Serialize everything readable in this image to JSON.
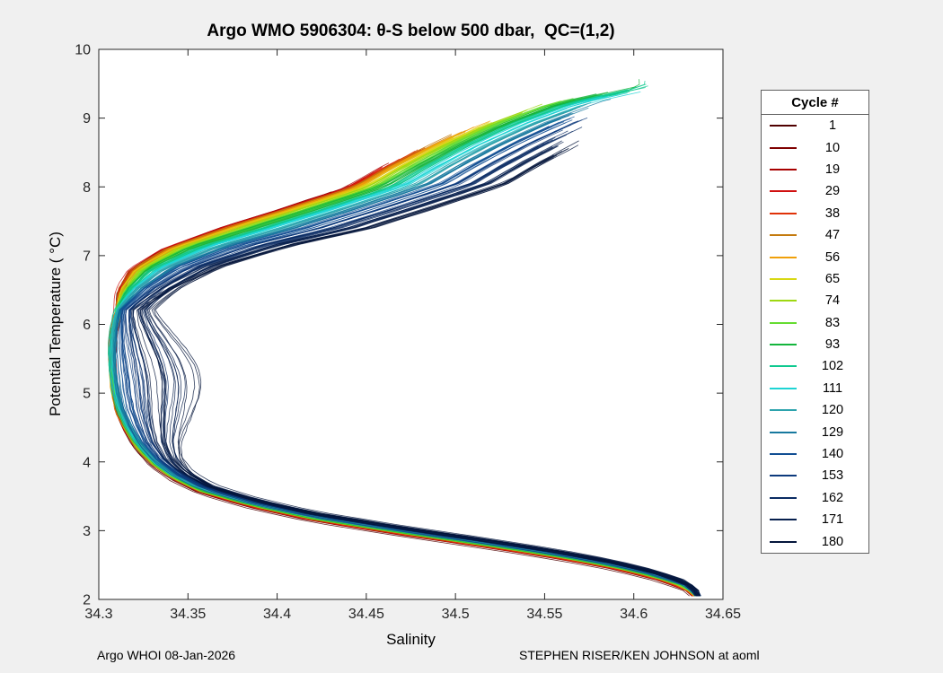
{
  "figure": {
    "background": "#f0f0f0"
  },
  "chart_data": {
    "type": "line",
    "title": "Argo WMO 5906304: θ-S below 500 dbar,  QC=(1,2)",
    "xlabel": "Salinity",
    "ylabel": "Potential Temperature ( °C)",
    "xlim": [
      34.3,
      34.65
    ],
    "ylim": [
      2,
      10
    ],
    "x_ticks": [
      34.3,
      34.35,
      34.4,
      34.45,
      34.5,
      34.55,
      34.6,
      34.65
    ],
    "x_tick_labels": [
      "34.3",
      "34.35",
      "34.4",
      "34.45",
      "34.5",
      "34.55",
      "34.6",
      "34.65"
    ],
    "y_ticks": [
      2,
      3,
      4,
      5,
      6,
      7,
      8,
      9,
      10
    ],
    "y_tick_labels": [
      "2",
      "3",
      "4",
      "5",
      "6",
      "7",
      "8",
      "9",
      "10"
    ],
    "grid": false,
    "legend_title": "Cycle #",
    "legend_position": "right-outside",
    "axis_color": "#262626",
    "plot_background": "#ffffff",
    "base_curve": {
      "comment": "Mean theta-S profile: S (salinity) as function of T (potential temperature, degC)",
      "T": [
        2.05,
        2.2,
        2.35,
        2.5,
        2.65,
        2.8,
        3.0,
        3.2,
        3.4,
        3.6,
        3.8,
        4.0,
        4.25,
        4.5,
        4.75,
        5.0,
        5.3,
        5.6,
        5.9,
        6.2,
        6.5,
        6.8,
        7.1,
        7.4,
        7.7,
        8.0,
        8.3,
        8.6,
        8.9,
        9.2,
        9.45
      ],
      "S": [
        34.636,
        34.629,
        34.612,
        34.588,
        34.557,
        34.52,
        34.468,
        34.42,
        34.385,
        34.358,
        34.342,
        34.331,
        34.322,
        34.316,
        34.3115,
        34.309,
        34.3075,
        34.307,
        34.308,
        34.3105,
        34.316,
        34.327,
        34.35,
        34.386,
        34.423,
        34.458,
        34.478,
        34.5,
        34.525,
        34.556,
        34.6
      ]
    },
    "series": [
      {
        "cycle": 1,
        "color": "#500000",
        "t_max": 7.9,
        "s_shift_top": -0.02,
        "s_shift_mid": 0,
        "t_shift": 0.05
      },
      {
        "cycle": 10,
        "color": "#7f0000",
        "t_max": 8.05,
        "s_shift_top": -0.0199,
        "s_shift_mid": 0,
        "t_shift": 0.0447
      },
      {
        "cycle": 19,
        "color": "#a80000",
        "t_max": 8.2,
        "s_shift_top": -0.0194,
        "s_shift_mid": 0,
        "t_shift": 0.0395
      },
      {
        "cycle": 29,
        "color": "#d01010",
        "t_max": 8.35,
        "s_shift_top": -0.0184,
        "s_shift_mid": 0,
        "t_shift": 0.0342
      },
      {
        "cycle": 38,
        "color": "#e03208",
        "t_max": 8.49,
        "s_shift_top": -0.0171,
        "s_shift_mid": 0,
        "t_shift": 0.0289
      },
      {
        "cycle": 47,
        "color": "#c47a0e",
        "t_max": 8.64,
        "s_shift_top": -0.0152,
        "s_shift_mid": 0,
        "t_shift": 0.0237
      },
      {
        "cycle": 56,
        "color": "#f0a00a",
        "t_max": 8.79,
        "s_shift_top": -0.0129,
        "s_shift_mid": 0,
        "t_shift": 0.0184
      },
      {
        "cycle": 65,
        "color": "#d8d812",
        "t_max": 8.94,
        "s_shift_top": -0.01,
        "s_shift_mid": 0,
        "t_shift": 0.0132
      },
      {
        "cycle": 74,
        "color": "#9ed812",
        "t_max": 9.09,
        "s_shift_top": -0.0066,
        "s_shift_mid": 0,
        "t_shift": 0.0079
      },
      {
        "cycle": 83,
        "color": "#64dc30",
        "t_max": 9.24,
        "s_shift_top": -0.0026,
        "s_shift_mid": 0,
        "t_shift": 0.0026
      },
      {
        "cycle": 93,
        "color": "#14b53c",
        "t_max": 9.38,
        "s_shift_top": 0.0019,
        "s_shift_mid": 0,
        "t_shift": -0.0026
      },
      {
        "cycle": 102,
        "color": "#0ec98f",
        "t_max": 9.39,
        "s_shift_top": 0.007,
        "s_shift_mid": 0,
        "t_shift": -0.0079
      },
      {
        "cycle": 111,
        "color": "#1ed4d4",
        "t_max": 9.28,
        "s_shift_top": 0.0128,
        "s_shift_mid": 0.0005,
        "t_shift": -0.0132
      },
      {
        "cycle": 120,
        "color": "#2da3ad",
        "t_max": 9.17,
        "s_shift_top": 0.0191,
        "s_shift_mid": 0.001,
        "t_shift": -0.0184
      },
      {
        "cycle": 129,
        "color": "#17799f",
        "t_max": 9.06,
        "s_shift_top": 0.026,
        "s_shift_mid": 0.002,
        "t_shift": -0.0237
      },
      {
        "cycle": 140,
        "color": "#114e93",
        "t_max": 8.95,
        "s_shift_top": 0.0335,
        "s_shift_mid": 0.006,
        "t_shift": -0.0289
      },
      {
        "cycle": 153,
        "color": "#0d3a7d",
        "t_max": 8.83,
        "s_shift_top": 0.0417,
        "s_shift_mid": 0.012,
        "t_shift": -0.0342
      },
      {
        "cycle": 162,
        "color": "#0a2b63",
        "t_max": 8.72,
        "s_shift_top": 0.0505,
        "s_shift_mid": 0.02,
        "t_shift": -0.0395
      },
      {
        "cycle": 171,
        "color": "#07204e",
        "t_max": 8.61,
        "s_shift_top": 0.0599,
        "s_shift_mid": 0.03,
        "t_shift": -0.0447
      },
      {
        "cycle": 180,
        "color": "#05163c",
        "t_max": 8.5,
        "s_shift_top": 0.07,
        "s_shift_mid": 0.04,
        "t_shift": -0.05
      }
    ]
  },
  "footer": {
    "left": "Argo WHOI 08-Jan-2026",
    "right": "STEPHEN RISER/KEN JOHNSON at aoml"
  }
}
